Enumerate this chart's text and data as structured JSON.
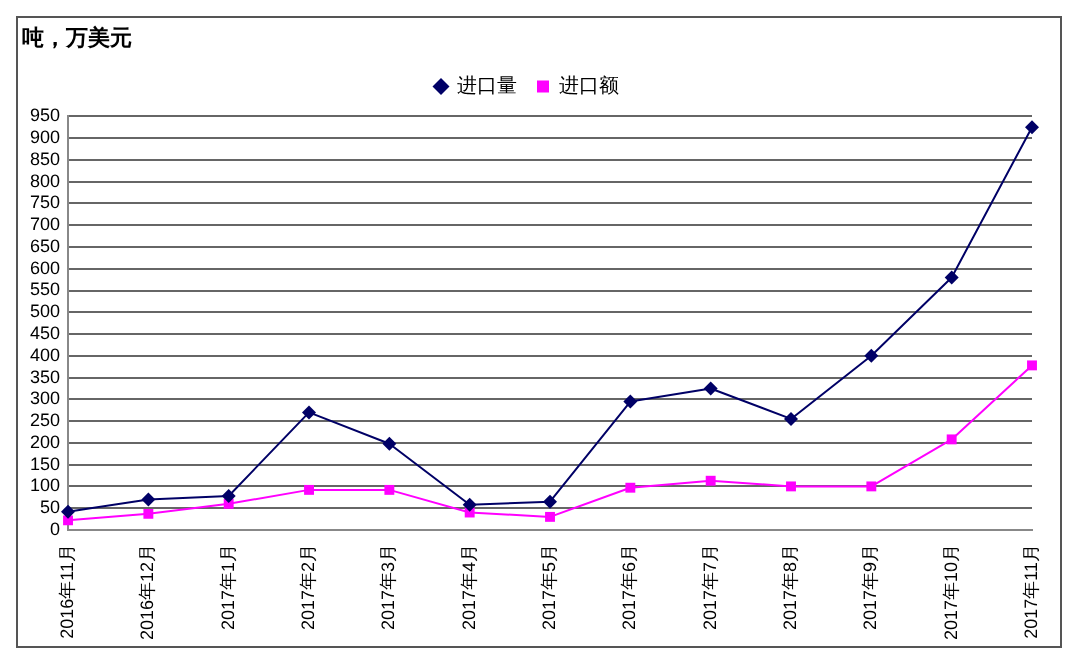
{
  "chart_data": {
    "type": "line",
    "ylabel": "吨，万美元",
    "categories": [
      "2016年11月",
      "2016年12月",
      "2017年1月",
      "2017年2月",
      "2017年3月",
      "2017年4月",
      "2017年5月",
      "2017年6月",
      "2017年7月",
      "2017年8月",
      "2017年9月",
      "2017年10月",
      "2017年11月"
    ],
    "series": [
      {
        "name": "进口量",
        "color": "#000066",
        "marker": "diamond",
        "values": [
          42,
          70,
          78,
          270,
          198,
          58,
          65,
          295,
          325,
          255,
          400,
          580,
          925
        ]
      },
      {
        "name": "进口额",
        "color": "#ff00ff",
        "marker": "square",
        "values": [
          22,
          37,
          60,
          92,
          92,
          40,
          30,
          97,
          113,
          100,
          100,
          208,
          378
        ]
      }
    ],
    "ylim": [
      0,
      950
    ],
    "yticks": [
      0,
      50,
      100,
      150,
      200,
      250,
      300,
      350,
      400,
      450,
      500,
      550,
      600,
      650,
      700,
      750,
      800,
      850,
      900,
      950
    ],
    "grid": "y",
    "legend": "top",
    "line_style": "solid"
  }
}
